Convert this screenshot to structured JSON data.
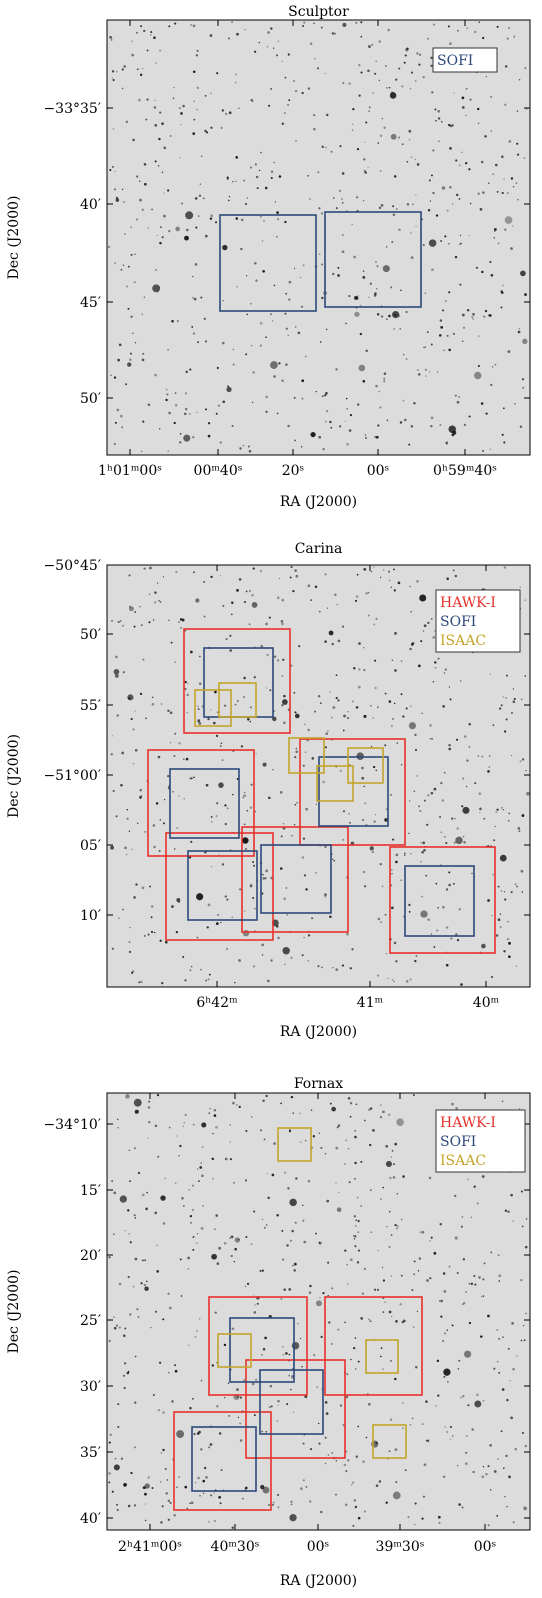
{
  "panels": [
    {
      "title": "Sculptor",
      "xlabel": "RA (J2000)",
      "ylabel": "Dec (J2000)",
      "xticks": [
        "1ʰ01ᵐ00ˢ",
        "00ᵐ40ˢ",
        "20ˢ",
        "00ˢ",
        "0ʰ59ᵐ40ˢ"
      ],
      "yticks": [
        "−33°35′",
        "40′",
        "45′",
        "50′"
      ],
      "legend": [
        {
          "label": "SOFI",
          "color": "#2c4a7a"
        }
      ]
    },
    {
      "title": "Carina",
      "xlabel": "RA (J2000)",
      "ylabel": "Dec (J2000)",
      "xticks": [
        "6ʰ42ᵐ",
        "41ᵐ",
        "40ᵐ"
      ],
      "yticks": [
        "−50°45′",
        "50′",
        "55′",
        "−51°00′",
        "05′",
        "10′"
      ],
      "legend": [
        {
          "label": "HAWK-I",
          "color": "#e8312a"
        },
        {
          "label": "SOFI",
          "color": "#2c4a7a"
        },
        {
          "label": "ISAAC",
          "color": "#c4a52a"
        }
      ]
    },
    {
      "title": "Fornax",
      "xlabel": "RA (J2000)",
      "ylabel": "Dec (J2000)",
      "xticks": [
        "2ʰ41ᵐ00ˢ",
        "40ᵐ30ˢ",
        "00ˢ",
        "39ᵐ30ˢ",
        "00ˢ"
      ],
      "yticks": [
        "−34°10′",
        "15′",
        "20′",
        "25′",
        "30′",
        "35′",
        "40′"
      ],
      "legend": [
        {
          "label": "HAWK-I",
          "color": "#e8312a"
        },
        {
          "label": "SOFI",
          "color": "#2c4a7a"
        },
        {
          "label": "ISAAC",
          "color": "#c4a52a"
        }
      ]
    }
  ]
}
